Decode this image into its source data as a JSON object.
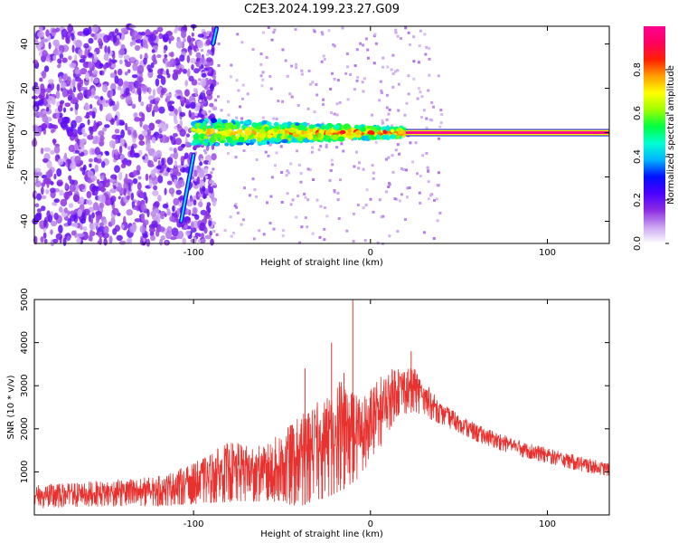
{
  "title": "C2E3.2024.199.23.27.G09",
  "chart_data": [
    {
      "type": "heatmap",
      "xlabel": "Height of straight line (km)",
      "ylabel": "Frequency (Hz)",
      "xlim": [
        -190,
        135
      ],
      "ylim": [
        -50,
        48
      ],
      "x_ticks": [
        -100,
        0,
        100
      ],
      "y_ticks": [
        -40,
        -20,
        0,
        20,
        40
      ],
      "colorbar": {
        "label": "Normalized spectral amplitude",
        "range": [
          0,
          1
        ],
        "ticks": [
          "0.0",
          "0.2",
          "0.4",
          "0.6",
          "0.8"
        ],
        "colors": [
          "#ffffff",
          "#c9a3f0",
          "#8b2be2",
          "#4b00ff",
          "#0010ff",
          "#00b4ff",
          "#00ffd0",
          "#00ff40",
          "#9dff00",
          "#ffff00",
          "#ffa000",
          "#ff2000",
          "#ff0060",
          "#ff0090"
        ]
      },
      "features": {
        "carrier_line": {
          "x_start": 20,
          "x_end": 135,
          "frequency": 0,
          "amplitude": 1.0
        },
        "turbulent_band": {
          "x_start": -100,
          "x_end": 20,
          "half_width_hz": 6
        },
        "noise_region": {
          "x_start": -190,
          "x_end": -100,
          "frequency_range": [
            -50,
            48
          ]
        },
        "streaks": [
          {
            "x1": -107,
            "y1": -40,
            "x2": -100,
            "y2": -10
          },
          {
            "x1": -89,
            "y1": 40,
            "x2": -87,
            "y2": 47
          }
        ]
      }
    },
    {
      "type": "line",
      "xlabel": "Height of straight line (km)",
      "ylabel": "SNR (10 * v/v)",
      "xlim": [
        -190,
        135
      ],
      "ylim": [
        0,
        5000
      ],
      "x_ticks": [
        -100,
        0,
        100
      ],
      "y_ticks": [
        1000,
        2000,
        3000,
        4000,
        5000
      ],
      "series": [
        {
          "color": "#e8322f",
          "envelope": [
            {
              "x": -190,
              "low": 150,
              "high": 700
            },
            {
              "x": -150,
              "low": 200,
              "high": 800
            },
            {
              "x": -120,
              "low": 200,
              "high": 900
            },
            {
              "x": -100,
              "low": 250,
              "high": 1200
            },
            {
              "x": -80,
              "low": 300,
              "high": 1700
            },
            {
              "x": -60,
              "low": 300,
              "high": 1600
            },
            {
              "x": -40,
              "low": 200,
              "high": 2300
            },
            {
              "x": -25,
              "low": 400,
              "high": 2800
            },
            {
              "x": -15,
              "low": 600,
              "high": 3300
            },
            {
              "x": -5,
              "low": 900,
              "high": 2700
            },
            {
              "x": 5,
              "low": 1500,
              "high": 3200
            },
            {
              "x": 15,
              "low": 2300,
              "high": 3500
            },
            {
              "x": 25,
              "low": 2400,
              "high": 3400
            },
            {
              "x": 40,
              "low": 2100,
              "high": 2600
            },
            {
              "x": 60,
              "low": 1700,
              "high": 2100
            },
            {
              "x": 80,
              "low": 1400,
              "high": 1800
            },
            {
              "x": 100,
              "low": 1200,
              "high": 1550
            },
            {
              "x": 120,
              "low": 1000,
              "high": 1350
            },
            {
              "x": 135,
              "low": 900,
              "high": 1200
            }
          ],
          "spikes": [
            {
              "x": -10,
              "y": 5000
            },
            {
              "x": -22,
              "y": 4000
            },
            {
              "x": -37,
              "y": 3400
            },
            {
              "x": -15,
              "y": 3300
            },
            {
              "x": 23,
              "y": 3800
            }
          ]
        }
      ]
    }
  ]
}
